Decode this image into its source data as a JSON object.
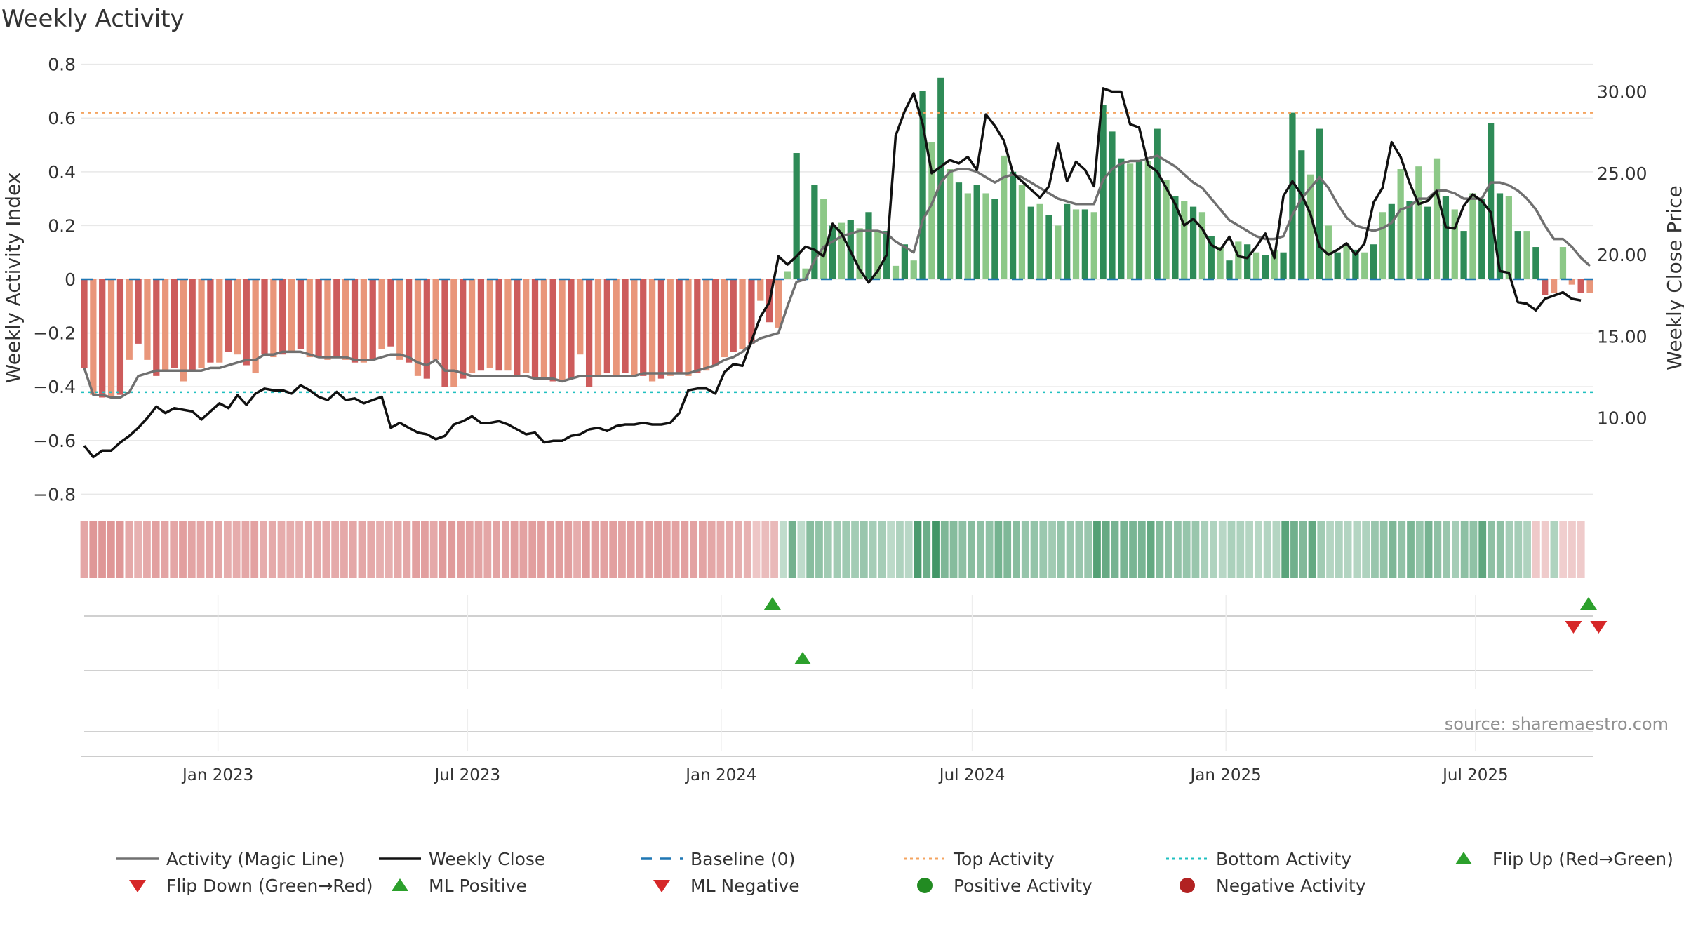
{
  "chart_data": {
    "type": "bar",
    "title": "Weekly Activity",
    "ylabel_left": "Weekly Activity Index",
    "ylabel_right": "Weekly Close Price",
    "source": "source: sharemaestro.com",
    "ylim_left": [
      -0.82,
      0.82
    ],
    "yticks_left": [
      "0.8",
      "0.6",
      "0.4",
      "0.2",
      "0",
      "−0.2",
      "−0.4",
      "−0.6",
      "−0.8"
    ],
    "ylim_right": [
      5.0,
      32.0
    ],
    "yticks_right": [
      "30.00",
      "25.00",
      "20.00",
      "15.00",
      "10.00"
    ],
    "x_start": "2022-09-26",
    "x_end": "2025-09-22",
    "x_tick_labels": [
      "Jan 2023",
      "Jul 2023",
      "Jan 2024",
      "Jul 2024",
      "Jan 2025",
      "Jul 2025"
    ],
    "x_tick_dates": [
      "2023-01-01",
      "2023-07-01",
      "2024-01-01",
      "2024-07-01",
      "2025-01-01",
      "2025-07-01"
    ],
    "grid": true,
    "legend_position": "bottom",
    "top_activity": 0.62,
    "bottom_activity": -0.42,
    "baseline": 0,
    "activity": [
      -0.33,
      -0.43,
      -0.44,
      -0.44,
      -0.43,
      -0.3,
      -0.24,
      -0.3,
      -0.36,
      -0.34,
      -0.33,
      -0.38,
      -0.34,
      -0.33,
      -0.31,
      -0.31,
      -0.27,
      -0.28,
      -0.32,
      -0.35,
      -0.28,
      -0.29,
      -0.28,
      -0.27,
      -0.26,
      -0.29,
      -0.29,
      -0.3,
      -0.29,
      -0.3,
      -0.31,
      -0.31,
      -0.3,
      -0.26,
      -0.25,
      -0.3,
      -0.31,
      -0.36,
      -0.37,
      -0.3,
      -0.4,
      -0.4,
      -0.37,
      -0.35,
      -0.34,
      -0.33,
      -0.34,
      -0.34,
      -0.36,
      -0.35,
      -0.37,
      -0.37,
      -0.38,
      -0.38,
      -0.37,
      -0.28,
      -0.4,
      -0.36,
      -0.35,
      -0.36,
      -0.35,
      -0.36,
      -0.36,
      -0.38,
      -0.37,
      -0.36,
      -0.35,
      -0.36,
      -0.35,
      -0.34,
      -0.32,
      -0.29,
      -0.27,
      -0.26,
      -0.24,
      -0.08,
      -0.16,
      -0.18,
      0.03,
      0.47,
      0.04,
      0.35,
      0.3,
      0.2,
      0.21,
      0.22,
      0.19,
      0.25,
      0.18,
      0.18,
      0.05,
      0.13,
      0.07,
      0.7,
      0.51,
      0.75,
      0.41,
      0.36,
      0.32,
      0.35,
      0.32,
      0.3,
      0.46,
      0.4,
      0.35,
      0.27,
      0.28,
      0.24,
      0.2,
      0.28,
      0.26,
      0.26,
      0.25,
      0.65,
      0.55,
      0.45,
      0.43,
      0.44,
      0.44,
      0.56,
      0.37,
      0.31,
      0.29,
      0.27,
      0.25,
      0.16,
      0.12,
      0.07,
      0.14,
      0.13,
      0.1,
      0.09,
      0.11,
      0.1,
      0.62,
      0.48,
      0.39,
      0.56,
      0.2,
      0.1,
      0.13,
      0.11,
      0.1,
      0.13,
      0.25,
      0.28,
      0.41,
      0.29,
      0.42,
      0.27,
      0.45,
      0.31,
      0.26,
      0.18,
      0.32,
      0.3,
      0.58,
      0.32,
      0.31,
      0.18,
      0.18,
      0.12,
      -0.06,
      -0.05,
      0.12,
      -0.02,
      -0.05,
      -0.05
    ],
    "magic_line": [
      -0.33,
      -0.43,
      -0.43,
      -0.44,
      -0.44,
      -0.42,
      -0.36,
      -0.35,
      -0.34,
      -0.34,
      -0.34,
      -0.34,
      -0.34,
      -0.34,
      -0.33,
      -0.33,
      -0.32,
      -0.31,
      -0.3,
      -0.3,
      -0.28,
      -0.28,
      -0.27,
      -0.27,
      -0.27,
      -0.28,
      -0.29,
      -0.29,
      -0.29,
      -0.29,
      -0.3,
      -0.3,
      -0.3,
      -0.29,
      -0.28,
      -0.28,
      -0.29,
      -0.31,
      -0.32,
      -0.3,
      -0.34,
      -0.34,
      -0.35,
      -0.36,
      -0.36,
      -0.36,
      -0.36,
      -0.36,
      -0.36,
      -0.36,
      -0.37,
      -0.37,
      -0.37,
      -0.38,
      -0.37,
      -0.36,
      -0.36,
      -0.36,
      -0.36,
      -0.36,
      -0.36,
      -0.36,
      -0.35,
      -0.35,
      -0.35,
      -0.35,
      -0.35,
      -0.35,
      -0.34,
      -0.33,
      -0.32,
      -0.3,
      -0.29,
      -0.27,
      -0.24,
      -0.22,
      -0.21,
      -0.2,
      -0.1,
      -0.01,
      0.0,
      0.07,
      0.12,
      0.14,
      0.16,
      0.17,
      0.18,
      0.18,
      0.18,
      0.17,
      0.14,
      0.12,
      0.1,
      0.22,
      0.28,
      0.36,
      0.4,
      0.41,
      0.41,
      0.4,
      0.38,
      0.36,
      0.38,
      0.39,
      0.38,
      0.36,
      0.34,
      0.32,
      0.3,
      0.29,
      0.28,
      0.28,
      0.28,
      0.37,
      0.41,
      0.43,
      0.44,
      0.44,
      0.45,
      0.46,
      0.44,
      0.42,
      0.39,
      0.36,
      0.34,
      0.3,
      0.26,
      0.22,
      0.2,
      0.18,
      0.16,
      0.15,
      0.15,
      0.16,
      0.24,
      0.3,
      0.34,
      0.38,
      0.34,
      0.28,
      0.23,
      0.2,
      0.19,
      0.18,
      0.19,
      0.21,
      0.26,
      0.27,
      0.3,
      0.3,
      0.33,
      0.33,
      0.32,
      0.3,
      0.3,
      0.3,
      0.36,
      0.36,
      0.35,
      0.33,
      0.3,
      0.26,
      0.2,
      0.15,
      0.15,
      0.12,
      0.08,
      0.05
    ],
    "weekly_close": [
      8.3,
      7.6,
      8.0,
      8.0,
      8.5,
      8.9,
      9.4,
      10.0,
      10.7,
      10.3,
      10.6,
      10.5,
      10.4,
      9.9,
      10.4,
      10.9,
      10.6,
      11.4,
      10.8,
      11.5,
      11.8,
      11.7,
      11.7,
      11.5,
      12.0,
      11.7,
      11.3,
      11.1,
      11.6,
      11.1,
      11.2,
      10.9,
      11.1,
      11.3,
      9.4,
      9.7,
      9.4,
      9.1,
      9.0,
      8.7,
      8.9,
      9.6,
      9.8,
      10.1,
      9.7,
      9.7,
      9.8,
      9.6,
      9.3,
      9.0,
      9.1,
      8.5,
      8.6,
      8.6,
      8.9,
      9.0,
      9.3,
      9.4,
      9.2,
      9.5,
      9.6,
      9.6,
      9.7,
      9.6,
      9.6,
      9.7,
      10.3,
      11.7,
      11.8,
      11.8,
      11.5,
      12.8,
      13.3,
      13.2,
      14.7,
      16.2,
      17.1,
      19.9,
      19.4,
      19.9,
      20.5,
      20.3,
      19.9,
      21.9,
      21.3,
      20.2,
      19.1,
      18.3,
      19.0,
      20.0,
      27.3,
      28.8,
      29.9,
      28.0,
      25.0,
      25.4,
      25.8,
      25.6,
      26.0,
      25.2,
      28.6,
      27.9,
      27.0,
      25.0,
      24.5,
      24.0,
      23.5,
      24.2,
      26.8,
      24.5,
      25.7,
      25.2,
      24.2,
      30.2,
      30.0,
      30.0,
      28.0,
      27.8,
      25.5,
      25.1,
      24.1,
      23.1,
      21.8,
      22.2,
      21.6,
      20.6,
      20.3,
      21.1,
      19.9,
      19.8,
      20.5,
      21.3,
      19.8,
      23.6,
      24.5,
      23.7,
      22.5,
      20.5,
      20.0,
      20.3,
      20.7,
      20.0,
      20.7,
      23.2,
      24.1,
      26.9,
      26.0,
      24.4,
      23.1,
      23.3,
      23.9,
      21.7,
      21.6,
      23.0,
      23.7,
      23.3,
      22.6,
      19.0,
      18.9,
      17.1,
      17.0,
      16.6,
      17.3,
      17.5,
      17.7,
      17.3,
      17.2
    ],
    "flip_up": [
      2024.1,
      2025.72
    ],
    "flip_down": [
      2025.69,
      2025.74
    ],
    "ml_positive": [
      2024.16
    ],
    "ml_negative": [],
    "colors": {
      "positive_strong": "#2e8b57",
      "positive_light": "#8cc887",
      "negative_strong": "#cd5c5c",
      "negative_light": "#e9967a",
      "magic_line": "#707070",
      "weekly_close": "#111111",
      "baseline": "#1f77b4",
      "top_activity": "#f4a460",
      "bottom_activity": "#20c0c0",
      "marker_green": "#2ca02c",
      "marker_red": "#d62728",
      "dot_green": "#228b22",
      "dot_red": "#b22222"
    },
    "legend": [
      {
        "label": "Activity (Magic Line)",
        "symbol": "solid-line",
        "color": "#707070"
      },
      {
        "label": "Weekly Close",
        "symbol": "solid-line",
        "color": "#111111"
      },
      {
        "label": "Baseline (0)",
        "symbol": "dashed-line",
        "color": "#1f77b4"
      },
      {
        "label": "Top Activity",
        "symbol": "dotted-line",
        "color": "#f4a460"
      },
      {
        "label": "Bottom Activity",
        "symbol": "dotted-line",
        "color": "#20c0c0"
      },
      {
        "label": "Flip Up (Red→Green)",
        "symbol": "triangle-up",
        "color": "#2ca02c"
      },
      {
        "label": "Flip Down (Green→Red)",
        "symbol": "triangle-down",
        "color": "#d62728"
      },
      {
        "label": "ML Positive",
        "symbol": "triangle-up",
        "color": "#2ca02c"
      },
      {
        "label": "ML Negative",
        "symbol": "triangle-down",
        "color": "#d62728"
      },
      {
        "label": "Positive Activity",
        "symbol": "circle",
        "color": "#228b22"
      },
      {
        "label": "Negative Activity",
        "symbol": "circle",
        "color": "#b22222"
      }
    ]
  }
}
